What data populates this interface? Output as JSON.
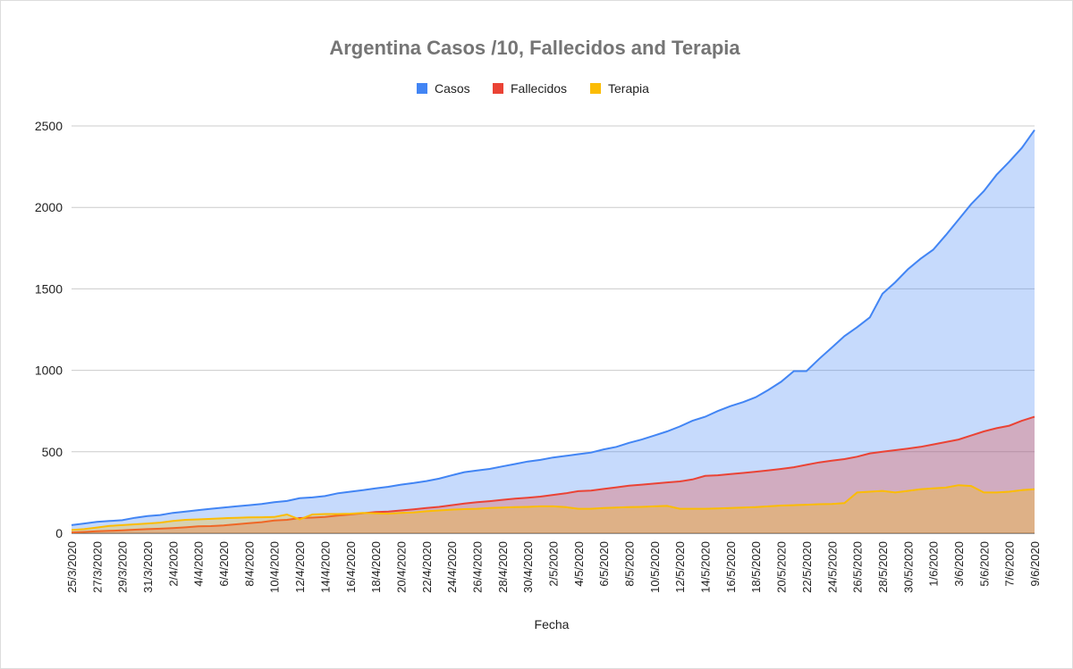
{
  "chart_data": {
    "type": "area",
    "title": "Argentina Casos /10, Fallecidos and Terapia",
    "x_label": "Fecha",
    "categories": [
      "25/3/2020",
      null,
      "27/3/2020",
      null,
      "29/3/2020",
      null,
      "31/3/2020",
      null,
      "2/4/2020",
      null,
      "4/4/2020",
      null,
      "6/4/2020",
      null,
      "8/4/2020",
      null,
      "10/4/2020",
      null,
      "12/4/2020",
      null,
      "14/4/2020",
      null,
      "16/4/2020",
      null,
      "18/4/2020",
      null,
      "20/4/2020",
      null,
      "22/4/2020",
      null,
      "24/4/2020",
      null,
      "26/4/2020",
      null,
      "28/4/2020",
      null,
      "30/4/2020",
      null,
      "2/5/2020",
      null,
      "4/5/2020",
      null,
      "6/5/2020",
      null,
      "8/5/2020",
      null,
      "10/5/2020",
      null,
      "12/5/2020",
      null,
      "14/5/2020",
      null,
      "16/5/2020",
      null,
      "18/5/2020",
      null,
      "20/5/2020",
      null,
      "22/5/2020",
      null,
      "24/5/2020",
      null,
      "26/5/2020",
      null,
      "28/5/2020",
      null,
      "30/5/2020",
      null,
      "1/6/2020",
      null,
      "3/6/2020",
      null,
      "5/6/2020",
      null,
      "7/6/2020",
      null,
      "9/6/2020"
    ],
    "series": [
      {
        "name": "Casos",
        "color": "#4285f4",
        "values": [
          50,
          60,
          70,
          75,
          80,
          95,
          105,
          112,
          125,
          133,
          142,
          150,
          158,
          165,
          172,
          180,
          190,
          198,
          215,
          220,
          228,
          245,
          255,
          265,
          275,
          285,
          298,
          308,
          320,
          335,
          355,
          375,
          385,
          395,
          410,
          425,
          440,
          450,
          465,
          475,
          485,
          495,
          515,
          530,
          555,
          575,
          600,
          625,
          655,
          690,
          715,
          750,
          780,
          805,
          835,
          880,
          930,
          995,
          995,
          1070,
          1140,
          1210,
          1265,
          1325,
          1470,
          1540,
          1620,
          1685,
          1740,
          1830,
          1925,
          2020,
          2100,
          2200,
          2280,
          2365,
          2475
        ]
      },
      {
        "name": "Fallecidos",
        "color": "#ea4335",
        "values": [
          5,
          8,
          12,
          15,
          18,
          22,
          25,
          28,
          32,
          36,
          42,
          44,
          48,
          55,
          62,
          68,
          78,
          82,
          93,
          96,
          100,
          108,
          115,
          123,
          130,
          133,
          140,
          147,
          155,
          162,
          172,
          182,
          190,
          197,
          205,
          212,
          218,
          225,
          235,
          245,
          258,
          262,
          272,
          282,
          292,
          298,
          305,
          312,
          318,
          330,
          352,
          356,
          363,
          370,
          378,
          386,
          395,
          405,
          420,
          435,
          445,
          455,
          470,
          490,
          500,
          510,
          520,
          530,
          545,
          560,
          575,
          600,
          625,
          645,
          660,
          690,
          715
        ]
      },
      {
        "name": "Terapia",
        "color": "#fbbc04",
        "values": [
          20,
          25,
          35,
          45,
          50,
          55,
          60,
          65,
          75,
          82,
          85,
          88,
          92,
          95,
          97,
          98,
          100,
          115,
          85,
          115,
          118,
          118,
          120,
          125,
          122,
          120,
          125,
          128,
          135,
          140,
          145,
          148,
          150,
          155,
          158,
          160,
          162,
          165,
          165,
          160,
          150,
          150,
          155,
          158,
          160,
          162,
          165,
          168,
          150,
          150,
          150,
          152,
          155,
          158,
          160,
          165,
          170,
          172,
          175,
          178,
          180,
          185,
          250,
          255,
          260,
          250,
          260,
          270,
          275,
          280,
          295,
          290,
          250,
          250,
          255,
          265,
          270
        ]
      }
    ],
    "ylim": [
      0,
      2500
    ],
    "yticks": [
      0,
      500,
      1000,
      1500,
      2000,
      2500
    ],
    "grid": true,
    "legend": "top"
  }
}
